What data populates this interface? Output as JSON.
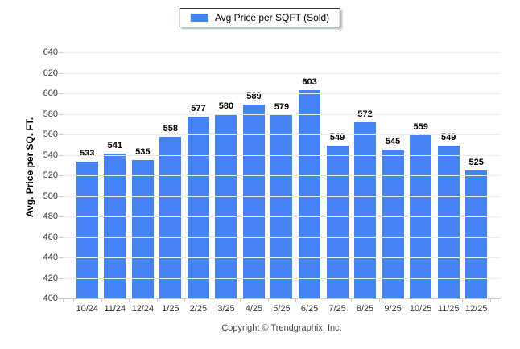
{
  "legend": {
    "label": "Avg Price per SQFT (Sold)"
  },
  "footer": {
    "copyright": "Copyright © Trendgraphix, Inc."
  },
  "chart_data": {
    "type": "bar",
    "title": "Avg Price per SQFT (Sold)",
    "categories": [
      "10/24",
      "11/24",
      "12/24",
      "1/25",
      "2/25",
      "3/25",
      "4/25",
      "5/25",
      "6/25",
      "7/25",
      "8/25",
      "9/25",
      "10/25",
      "11/25",
      "12/25"
    ],
    "values": [
      533,
      541,
      535,
      558,
      577,
      580,
      589,
      579,
      603,
      549,
      572,
      545,
      559,
      549,
      525
    ],
    "xlabel": "",
    "ylabel": "Avg. Price per SQ. FT.",
    "ylim": [
      400,
      640
    ],
    "ytick_step": 20,
    "grid": true,
    "legend_position": "top",
    "colors": {
      "bar": "#4484f4",
      "gridline": "#ededed",
      "axis": "#c9c9c9",
      "tick_label": "#333333",
      "value_label": "#000000",
      "legend_border": "#2b3a54"
    }
  }
}
